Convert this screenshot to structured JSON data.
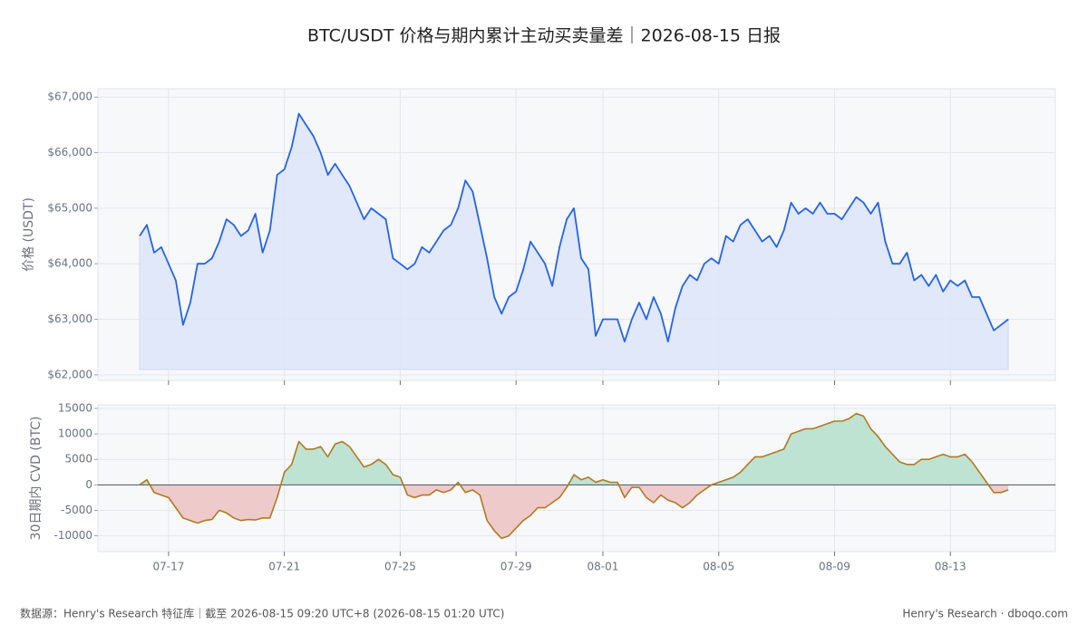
{
  "title": "BTC/USDT 价格与期内累计主动买卖量差｜2026-08-15 日报",
  "footer_left": "数据源：Henry's Research 特征库｜截至 2026-08-15 09:20 UTC+8 (2026-08-15 01:20 UTC)",
  "footer_right": "Henry's Research · dboqo.com",
  "chart_data": [
    {
      "type": "line",
      "y_label": "价格 (USDT)",
      "color": "#2563eb",
      "fill_color": "#dfe7fa",
      "grid": true,
      "x": [
        16,
        16.25,
        16.5,
        16.75,
        17,
        17.25,
        17.5,
        17.75,
        18,
        18.25,
        18.5,
        18.75,
        19,
        19.25,
        19.5,
        19.75,
        20,
        20.25,
        20.5,
        20.75,
        21,
        21.25,
        21.5,
        21.75,
        22,
        22.25,
        22.5,
        22.75,
        23,
        23.25,
        23.5,
        23.75,
        24,
        24.25,
        24.5,
        24.75,
        25,
        25.25,
        25.5,
        25.75,
        26,
        26.25,
        26.5,
        26.75,
        27,
        27.25,
        27.5,
        27.75,
        28,
        28.25,
        28.5,
        28.75,
        29,
        29.25,
        29.5,
        29.75,
        30,
        30.25,
        30.5,
        30.75,
        31,
        31.25,
        31.5,
        31.75,
        32,
        32.25,
        32.5,
        32.75,
        33,
        33.25,
        33.5,
        33.75,
        34,
        34.25,
        34.5,
        34.75,
        35,
        35.25,
        35.5,
        35.75,
        36,
        36.25,
        36.5,
        36.75,
        37,
        37.25,
        37.5,
        37.75,
        38,
        38.25,
        38.5,
        38.75,
        39,
        39.25,
        39.5,
        39.75,
        40,
        40.25,
        40.5,
        40.75,
        41,
        41.25,
        41.5,
        41.75,
        42,
        42.25,
        42.5,
        42.75,
        43,
        43.25,
        43.5,
        43.75,
        44,
        44.25,
        44.5,
        44.75,
        45,
        45.25,
        45.5,
        45.75,
        46
      ],
      "values": [
        64500,
        64700,
        64200,
        64300,
        64000,
        63700,
        62900,
        63300,
        64000,
        64000,
        64100,
        64400,
        64800,
        64700,
        64500,
        64600,
        64900,
        64200,
        64600,
        65600,
        65700,
        66100,
        66700,
        66500,
        66300,
        66000,
        65600,
        65800,
        65600,
        65400,
        65100,
        64800,
        65000,
        64900,
        64800,
        64100,
        64000,
        63900,
        64000,
        64300,
        64200,
        64400,
        64600,
        64700,
        65000,
        65500,
        65300,
        64700,
        64100,
        63400,
        63100,
        63400,
        63500,
        63900,
        64400,
        64200,
        64000,
        63600,
        64300,
        64800,
        65000,
        64100,
        63900,
        62700,
        63000,
        63000,
        63000,
        62600,
        63000,
        63300,
        63000,
        63400,
        63100,
        62600,
        63200,
        63600,
        63800,
        63700,
        64000,
        64100,
        64000,
        64500,
        64400,
        64700,
        64800,
        64600,
        64400,
        64500,
        64300,
        64600,
        65100,
        64900,
        65000,
        64900,
        65100,
        64900,
        64900,
        64800,
        65000,
        65200,
        65100,
        64900,
        65100,
        64400,
        64000,
        64000,
        64200,
        63700,
        63800,
        63600,
        63800,
        63500,
        63700,
        63600,
        63700,
        63400,
        63400,
        63100,
        62800,
        62900,
        63000
      ],
      "xlim": [
        14.56,
        47.625
      ],
      "ylim": [
        61900,
        67150
      ],
      "yticks": [
        {
          "value": 62000,
          "label": "$62,000"
        },
        {
          "value": 63000,
          "label": "$63,000"
        },
        {
          "value": 64000,
          "label": "$64,000"
        },
        {
          "value": 65000,
          "label": "$65,000"
        },
        {
          "value": 66000,
          "label": "$66,000"
        },
        {
          "value": 67000,
          "label": "$67,000"
        }
      ]
    },
    {
      "type": "cvd",
      "y_label": "30日期内 CVD (BTC)",
      "color": "#b07a22",
      "positive_color": "#bfe3d3",
      "negative_color": "#efcaca",
      "grid": true,
      "x": [
        16,
        16.25,
        16.5,
        16.75,
        17,
        17.25,
        17.5,
        17.75,
        18,
        18.25,
        18.5,
        18.75,
        19,
        19.25,
        19.5,
        19.75,
        20,
        20.25,
        20.5,
        20.75,
        21,
        21.25,
        21.5,
        21.75,
        22,
        22.25,
        22.5,
        22.75,
        23,
        23.25,
        23.5,
        23.75,
        24,
        24.25,
        24.5,
        24.75,
        25,
        25.25,
        25.5,
        25.75,
        26,
        26.25,
        26.5,
        26.75,
        27,
        27.25,
        27.5,
        27.75,
        28,
        28.25,
        28.5,
        28.75,
        29,
        29.25,
        29.5,
        29.75,
        30,
        30.25,
        30.5,
        30.75,
        31,
        31.25,
        31.5,
        31.75,
        32,
        32.25,
        32.5,
        32.75,
        33,
        33.25,
        33.5,
        33.75,
        34,
        34.25,
        34.5,
        34.75,
        35,
        35.25,
        35.5,
        35.75,
        36,
        36.25,
        36.5,
        36.75,
        37,
        37.25,
        37.5,
        37.75,
        38,
        38.25,
        38.5,
        38.75,
        39,
        39.25,
        39.5,
        39.75,
        40,
        40.25,
        40.5,
        40.75,
        41,
        41.25,
        41.5,
        41.75,
        42,
        42.25,
        42.5,
        42.75,
        43,
        43.25,
        43.5,
        43.75,
        44,
        44.25,
        44.5,
        44.75,
        45,
        45.25,
        45.5,
        45.75,
        46
      ],
      "values": [
        0,
        1000,
        -1500,
        -2000,
        -2500,
        -4500,
        -6500,
        -7000,
        -7500,
        -7000,
        -6800,
        -5000,
        -5500,
        -6500,
        -7000,
        -6800,
        -6900,
        -6500,
        -6500,
        -2500,
        2500,
        4000,
        8500,
        7000,
        7000,
        7500,
        5500,
        8000,
        8500,
        7500,
        5500,
        3500,
        4000,
        5000,
        4000,
        2000,
        1500,
        -2000,
        -2500,
        -2000,
        -2000,
        -1000,
        -1500,
        -1000,
        500,
        -1500,
        -1000,
        -2000,
        -7000,
        -9000,
        -10500,
        -10000,
        -8500,
        -7000,
        -6000,
        -4500,
        -4500,
        -3500,
        -2500,
        -500,
        2000,
        1000,
        1500,
        500,
        1000,
        500,
        500,
        -2500,
        -500,
        -500,
        -2500,
        -3500,
        -2000,
        -3000,
        -3500,
        -4500,
        -3500,
        -2000,
        -1000,
        0,
        500,
        1000,
        1500,
        2500,
        4000,
        5500,
        5500,
        6000,
        6500,
        7000,
        10000,
        10500,
        11000,
        11000,
        11500,
        12000,
        12500,
        12500,
        13000,
        14000,
        13500,
        11000,
        9500,
        7500,
        6000,
        4500,
        4000,
        4000,
        5000,
        5000,
        5500,
        6000,
        5500,
        5500,
        6000,
        4500,
        2500,
        500,
        -1500,
        -1500,
        -1000
      ],
      "xlim": [
        14.56,
        47.625
      ],
      "ylim": [
        -13100,
        15700
      ],
      "xticks": [
        {
          "value": 17,
          "label": "07-17"
        },
        {
          "value": 21,
          "label": "07-21"
        },
        {
          "value": 25,
          "label": "07-25"
        },
        {
          "value": 29,
          "label": "07-29"
        },
        {
          "value": 32,
          "label": "08-01"
        },
        {
          "value": 36,
          "label": "08-05"
        },
        {
          "value": 40,
          "label": "08-09"
        },
        {
          "value": 44,
          "label": "08-13"
        }
      ],
      "yticks": [
        -10000,
        -5000,
        0,
        5000,
        10000,
        15000
      ]
    }
  ]
}
